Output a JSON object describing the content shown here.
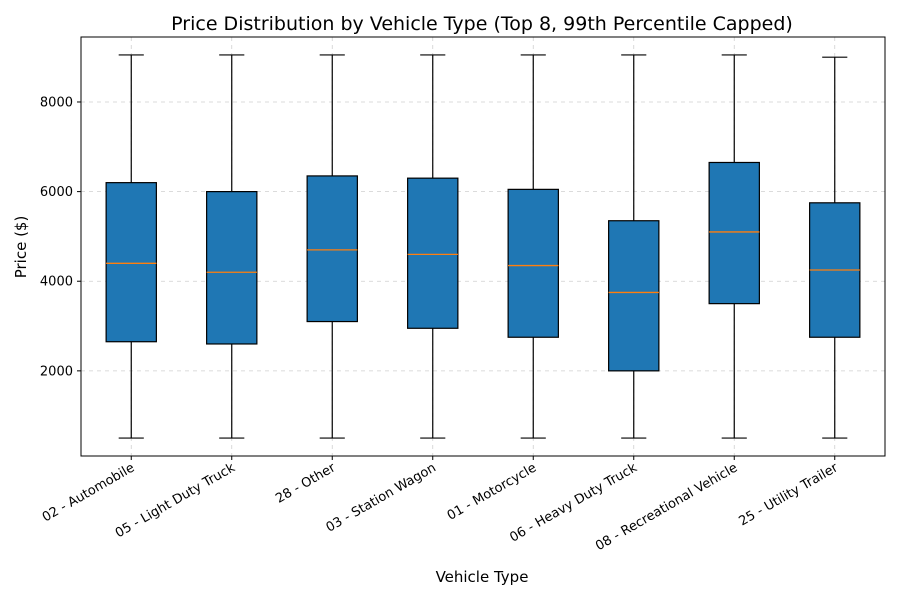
{
  "chart_data": {
    "type": "box",
    "title": "Price Distribution by Vehicle Type (Top 8, 99th Percentile Capped)",
    "xlabel": "Vehicle Type",
    "ylabel": "Price ($)",
    "ylim": [
      100,
      9450
    ],
    "yticks": [
      2000,
      4000,
      6000,
      8000
    ],
    "grid": true,
    "box_color": "#1f77b4",
    "median_color": "#ff7f0e",
    "categories": [
      "02 - Automobile",
      "05 - Light Duty Truck",
      "28 - Other",
      "03 - Station Wagon",
      "01 - Motorcycle",
      "06 - Heavy Duty Truck",
      "08 - Recreational Vehicle",
      "25 - Utility Trailer"
    ],
    "boxes": [
      {
        "whislo": 500,
        "q1": 2650,
        "med": 4400,
        "q3": 6200,
        "whishi": 9050
      },
      {
        "whislo": 500,
        "q1": 2600,
        "med": 4200,
        "q3": 6000,
        "whishi": 9050
      },
      {
        "whislo": 500,
        "q1": 3100,
        "med": 4700,
        "q3": 6350,
        "whishi": 9050
      },
      {
        "whislo": 500,
        "q1": 2950,
        "med": 4600,
        "q3": 6300,
        "whishi": 9050
      },
      {
        "whislo": 500,
        "q1": 2750,
        "med": 4350,
        "q3": 6050,
        "whishi": 9050
      },
      {
        "whislo": 500,
        "q1": 2000,
        "med": 3750,
        "q3": 5350,
        "whishi": 9050
      },
      {
        "whislo": 500,
        "q1": 3500,
        "med": 5100,
        "q3": 6650,
        "whishi": 9050
      },
      {
        "whislo": 500,
        "q1": 2750,
        "med": 4250,
        "q3": 5750,
        "whishi": 9000
      }
    ]
  }
}
